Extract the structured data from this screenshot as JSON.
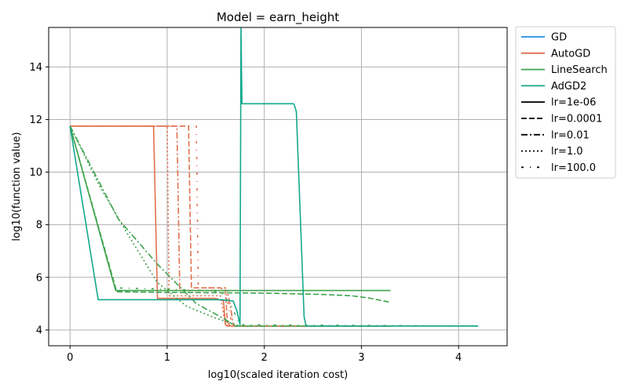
{
  "chart_data": {
    "type": "line",
    "title": "Model = earn_height",
    "xlabel": "log10(scaled iteration cost)",
    "ylabel": "log10(function value)",
    "xlim": [
      -0.22,
      4.5
    ],
    "ylim": [
      3.4,
      15.5
    ],
    "xticks": [
      0,
      1,
      2,
      3,
      4
    ],
    "yticks": [
      4,
      6,
      8,
      10,
      12,
      14
    ],
    "grid": true,
    "legend_position": "outside-top-right",
    "method_legend": [
      {
        "name": "GD",
        "color": "#1f8fe0"
      },
      {
        "name": "AutoGD",
        "color": "#e0714f"
      },
      {
        "name": "LineSearch",
        "color": "#3fa34d"
      },
      {
        "name": "AdGD2",
        "color": "#14a88c"
      }
    ],
    "lr_legend": [
      {
        "name": "lr=1e-06",
        "dash": "solid"
      },
      {
        "name": "lr=0.0001",
        "dash": "dashed"
      },
      {
        "name": "lr=0.01",
        "dash": "dashdot"
      },
      {
        "name": "lr=1.0",
        "dash": "dotted"
      },
      {
        "name": "lr=100.0",
        "dash": "loosely-dashdot"
      }
    ],
    "series": [
      {
        "method": "AutoGD",
        "lr": "lr=1e-06",
        "x": [
          0,
          0.86,
          0.9,
          1.5,
          1.58,
          1.6,
          1.62,
          3.3
        ],
        "y": [
          11.75,
          11.75,
          5.2,
          5.2,
          5.1,
          4.2,
          4.15,
          4.15
        ]
      },
      {
        "method": "AutoGD",
        "lr": "lr=0.0001",
        "x": [
          0,
          1.22,
          1.25,
          1.55,
          1.6,
          1.62,
          1.65,
          3.3
        ],
        "y": [
          11.75,
          11.75,
          5.6,
          5.6,
          5.5,
          4.3,
          4.15,
          4.15
        ]
      },
      {
        "method": "AutoGD",
        "lr": "lr=0.01",
        "x": [
          0,
          1.1,
          1.13,
          1.62,
          1.66,
          1.68,
          1.7,
          3.3
        ],
        "y": [
          11.75,
          11.75,
          5.5,
          5.5,
          4.7,
          4.2,
          4.15,
          4.15
        ]
      },
      {
        "method": "AutoGD",
        "lr": "lr=1.0",
        "x": [
          0,
          1.0,
          1.02,
          1.55,
          1.58,
          1.6,
          1.64,
          3.3
        ],
        "y": [
          11.75,
          11.75,
          5.3,
          5.3,
          4.6,
          4.2,
          4.15,
          4.15
        ]
      },
      {
        "method": "AutoGD",
        "lr": "lr=100.0",
        "x": [
          0,
          1.3,
          1.32,
          1.6,
          1.65,
          1.67,
          1.7,
          3.3
        ],
        "y": [
          11.75,
          11.75,
          5.6,
          5.6,
          4.5,
          4.25,
          4.15,
          4.15
        ]
      },
      {
        "method": "LineSearch",
        "lr": "lr=1e-06",
        "x": [
          0,
          0.47,
          1.75,
          3.3
        ],
        "y": [
          11.75,
          5.5,
          5.5,
          5.5
        ]
      },
      {
        "method": "LineSearch",
        "lr": "lr=0.0001",
        "x": [
          0,
          0.48,
          1.0,
          2.0,
          2.6,
          2.9,
          3.1,
          3.3
        ],
        "y": [
          11.75,
          5.45,
          5.43,
          5.4,
          5.35,
          5.3,
          5.2,
          5.05
        ]
      },
      {
        "method": "LineSearch",
        "lr": "lr=0.01",
        "x": [
          0,
          0.5,
          0.9,
          1.3,
          1.5,
          1.6,
          1.7,
          4.2
        ],
        "y": [
          11.75,
          8.2,
          6.5,
          5.0,
          4.6,
          4.4,
          4.15,
          4.15
        ]
      },
      {
        "method": "LineSearch",
        "lr": "lr=1.0",
        "x": [
          0,
          0.3,
          0.6,
          0.9,
          1.2,
          1.5,
          1.75,
          2.4,
          4.2
        ],
        "y": [
          11.75,
          9.5,
          7.6,
          5.8,
          4.9,
          4.45,
          4.15,
          4.15,
          4.15
        ]
      },
      {
        "method": "LineSearch",
        "lr": "lr=100.0",
        "x": [
          0,
          0.47,
          1.0,
          1.4,
          1.55,
          1.65,
          1.75,
          4.2
        ],
        "y": [
          11.75,
          5.6,
          5.55,
          5.5,
          5.45,
          5.0,
          4.2,
          4.15
        ]
      },
      {
        "method": "AdGD2",
        "lr": "lr=1e-06",
        "x": [
          0,
          0.29,
          1.56,
          1.68,
          1.72,
          1.75,
          1.76,
          1.77,
          2.3,
          2.31,
          2.33,
          2.41,
          2.43,
          4.2
        ],
        "y": [
          11.75,
          5.15,
          5.15,
          5.1,
          4.7,
          4.2,
          15.5,
          12.6,
          12.6,
          12.55,
          12.3,
          4.5,
          4.15,
          4.15
        ]
      }
    ]
  }
}
